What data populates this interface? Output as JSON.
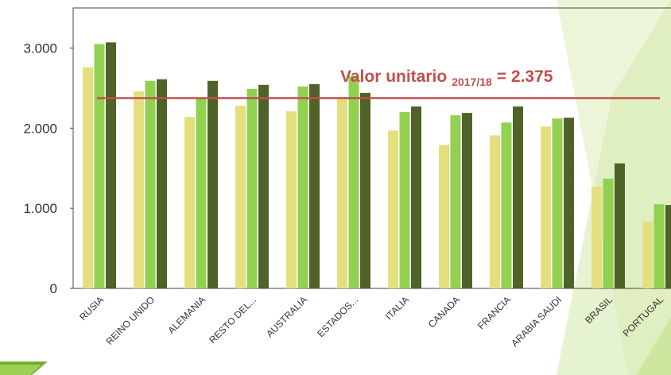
{
  "chart_data": {
    "type": "bar",
    "categories": [
      "RUSIA",
      "REINO UNIDO",
      "ALEMANIA",
      "RESTO DEL...",
      "AUSTRALIA",
      "ESTADOS...",
      "ITALIA",
      "CANADA",
      "FRANCIA",
      "ARABIA SAUDI",
      "BRASIL",
      "PORTUGAL"
    ],
    "series": [
      {
        "color": "#e4df7c",
        "values": [
          2760,
          2460,
          2140,
          2280,
          2210,
          2380,
          1970,
          1790,
          1910,
          2020,
          1270,
          830
        ]
      },
      {
        "color": "#92d050",
        "values": [
          3050,
          2590,
          2380,
          2490,
          2520,
          2650,
          2200,
          2160,
          2070,
          2120,
          1370,
          1050
        ]
      },
      {
        "color": "#4f6228",
        "values": [
          3070,
          2610,
          2590,
          2540,
          2550,
          2440,
          2270,
          2190,
          2270,
          2130,
          1560,
          1040
        ]
      }
    ],
    "ylim": [
      0,
      3500
    ],
    "yticks": [
      0,
      {
        "value": 1000,
        "label": "1.000"
      },
      {
        "value": 2000,
        "label": "2.000"
      },
      {
        "value": 3000,
        "label": "3.000"
      }
    ],
    "reference_line": {
      "value": 2375,
      "color": "#c0504d",
      "text": "Valor unitario",
      "subscript": "2017/18",
      "value_label": "= 2.375"
    }
  }
}
